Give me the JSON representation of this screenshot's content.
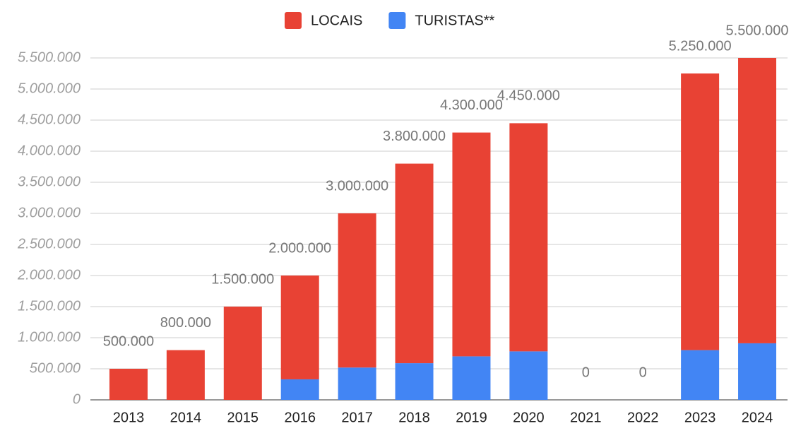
{
  "chart_data": {
    "type": "stacked_bar",
    "categories": [
      "2013",
      "2014",
      "2015",
      "2016",
      "2017",
      "2018",
      "2019",
      "2020",
      "2021",
      "2022",
      "2023",
      "2024"
    ],
    "series": [
      {
        "name": "LOCAIS",
        "color": "#e84234",
        "values": [
          500000,
          800000,
          1500000,
          1670000,
          2480000,
          3210000,
          3600000,
          3670000,
          0,
          0,
          4450000,
          4590000
        ]
      },
      {
        "name": "TURISTAS**",
        "color": "#4285f4",
        "values": [
          0,
          0,
          0,
          330000,
          520000,
          590000,
          700000,
          780000,
          0,
          0,
          800000,
          910000
        ]
      }
    ],
    "data_labels": [
      "500.000",
      "800.000",
      "1.500.000",
      "2.000.000",
      "3.000.000",
      "3.800.000",
      "4.300.000",
      "4.450.000",
      "0",
      "0",
      "5.250.000",
      "5.500.000"
    ],
    "ylim": [
      0,
      5500000
    ],
    "yticks": [
      0,
      {
        "value": 500000,
        "label": "500.000"
      },
      {
        "value": 1000000,
        "label": "1.000.000"
      },
      {
        "value": 1500000,
        "label": "1.500.000"
      },
      {
        "value": 2000000,
        "label": "2.000.000"
      },
      {
        "value": 2500000,
        "label": "2.500.000"
      },
      {
        "value": 3000000,
        "label": "3.000.000"
      },
      {
        "value": 3500000,
        "label": "3.500.000"
      },
      {
        "value": 4000000,
        "label": "4.000.000"
      },
      {
        "value": 4500000,
        "label": "4.500.000"
      },
      {
        "value": 5000000,
        "label": "5.000.000"
      },
      {
        "value": 5500000,
        "label": "5.500.000"
      }
    ],
    "grid": true,
    "legend": "top"
  }
}
